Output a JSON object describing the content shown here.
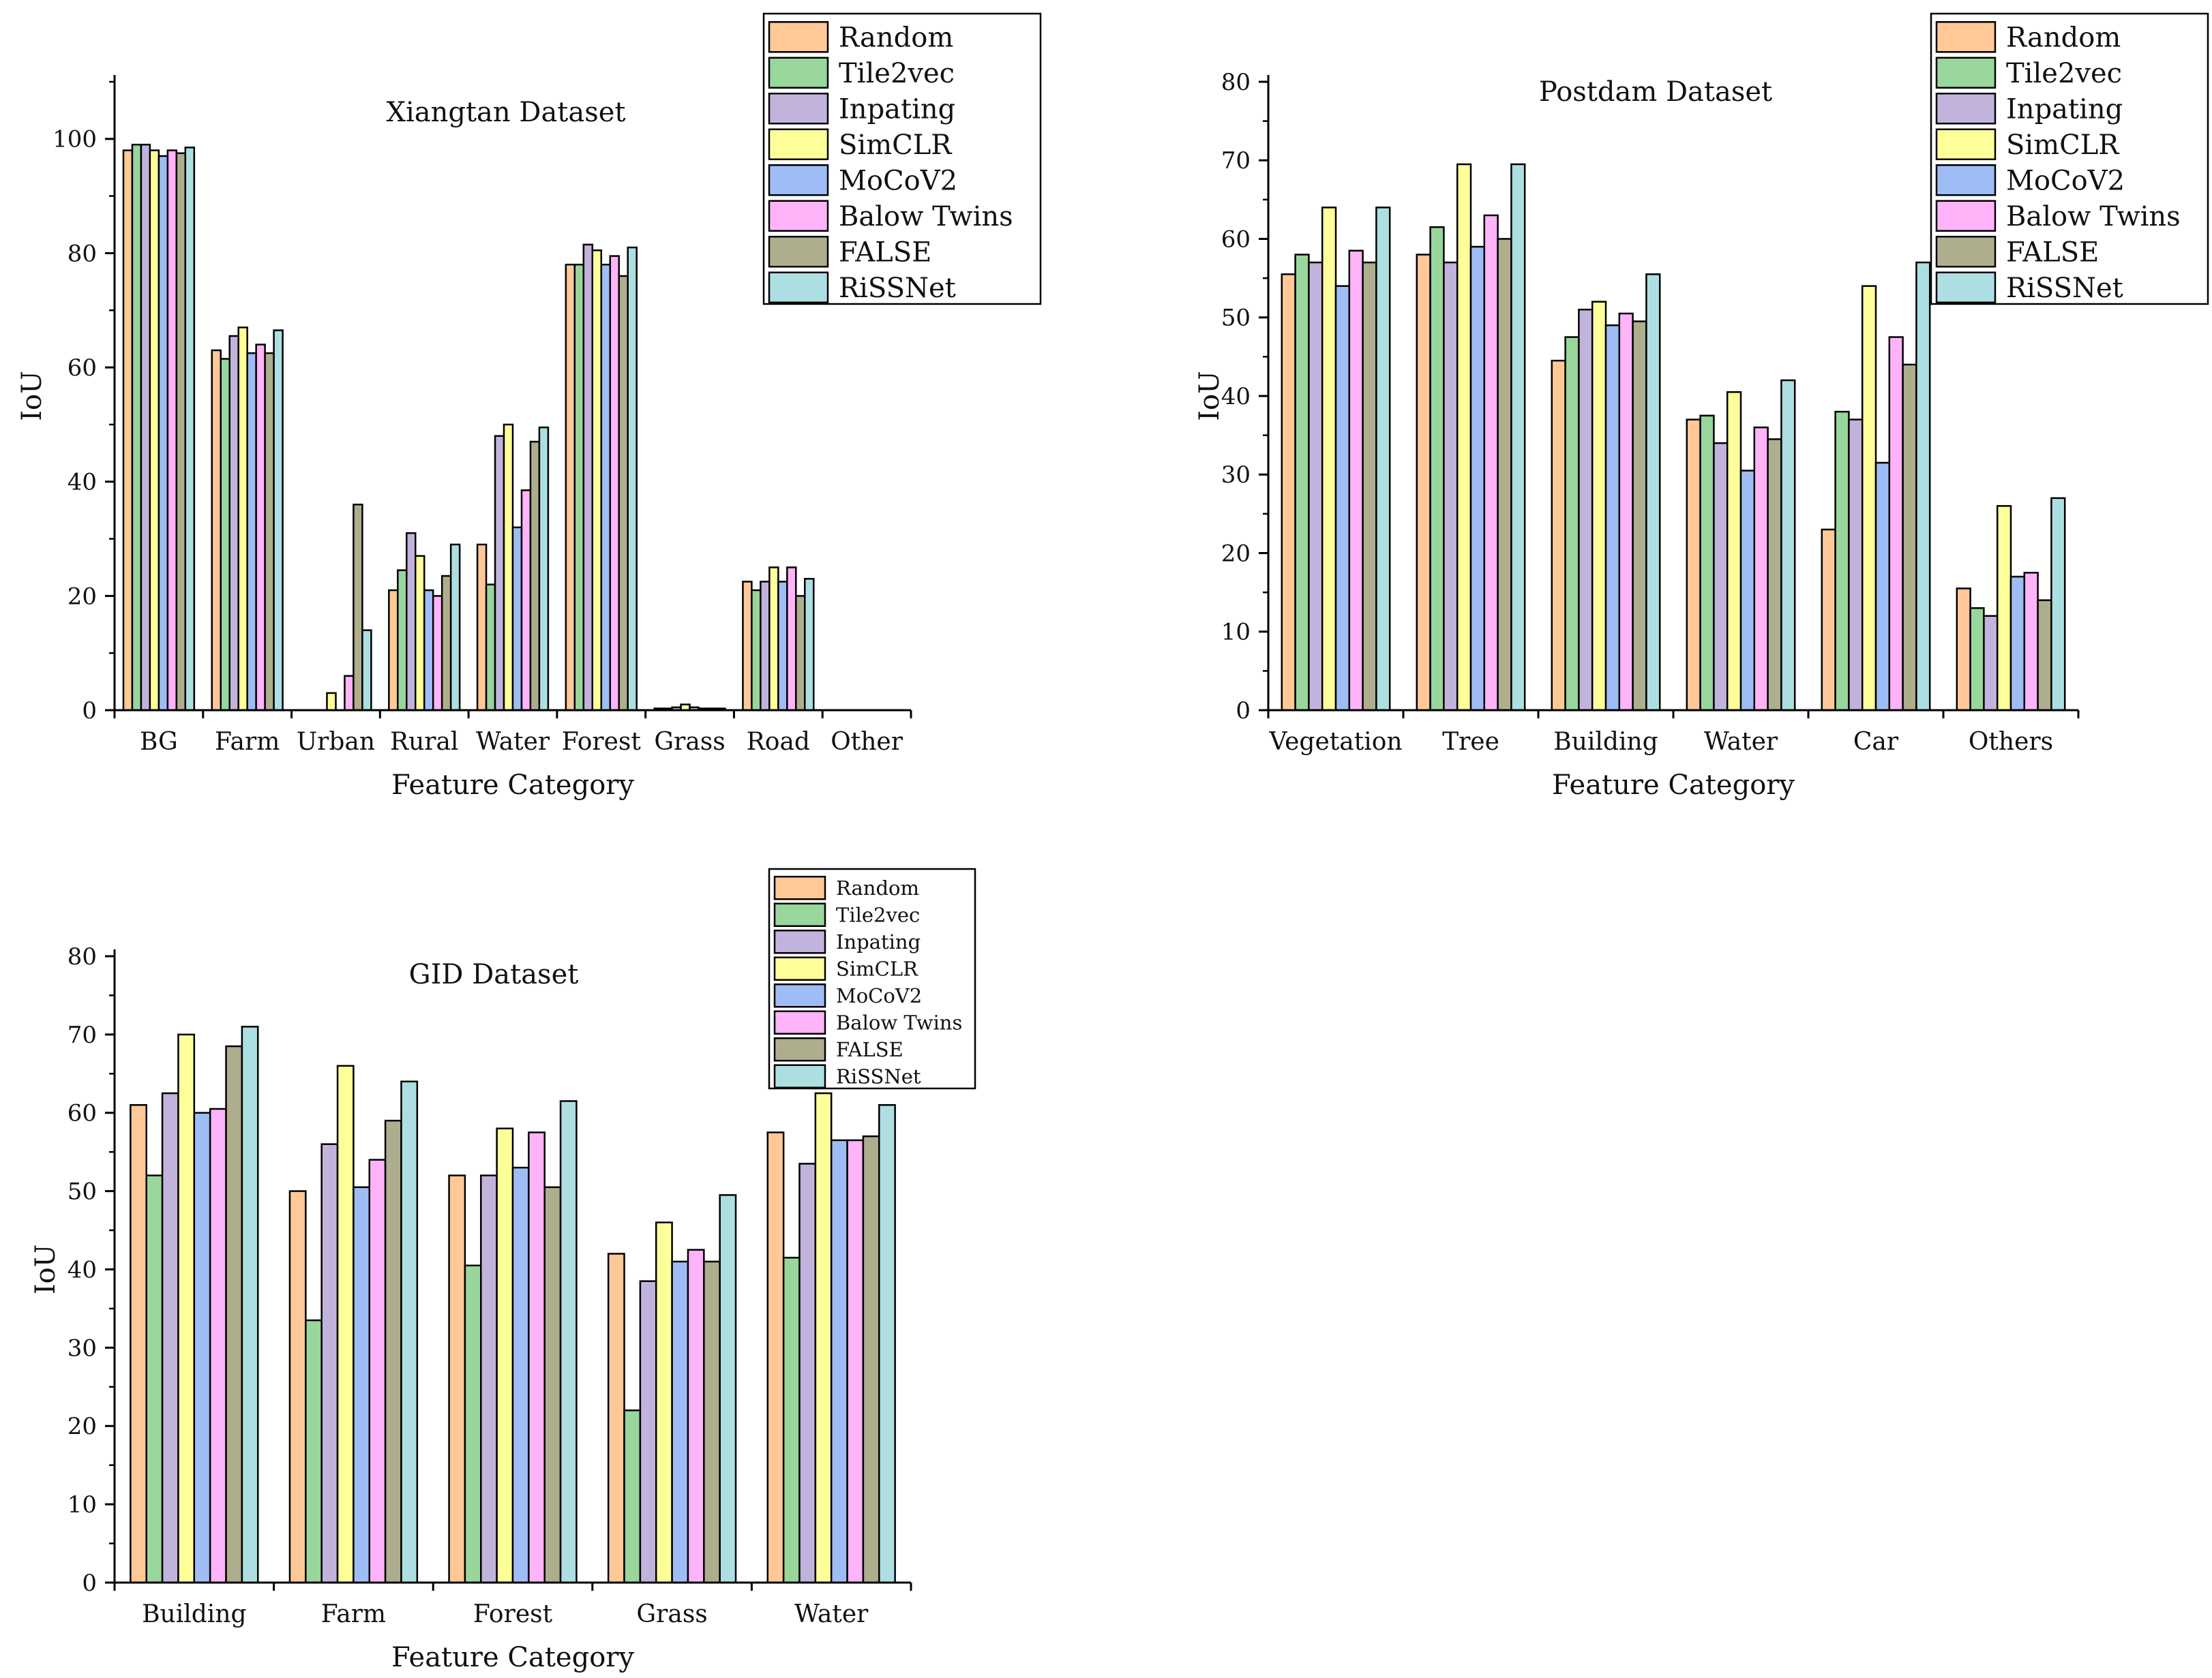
{
  "series_colors": [
    "#FFC896",
    "#98D69C",
    "#C2B3DC",
    "#FFFF9A",
    "#9FBDF5",
    "#FFB3F8",
    "#AEAE8E",
    "#ADDFE2"
  ],
  "chart_data": [
    {
      "type": "bar",
      "title": "Xiangtan Dataset",
      "xlabel": "Feature Category",
      "ylabel": "IoU",
      "ylim": [
        0,
        110
      ],
      "yticks": [
        0,
        20,
        40,
        60,
        80,
        100
      ],
      "categories": [
        "BG",
        "Farm",
        "Urban",
        "Rural",
        "Water",
        "Forest",
        "Grass",
        "Road",
        "Other"
      ],
      "legend_position": "top-right",
      "series": [
        {
          "name": "Random",
          "values": [
            98,
            63,
            0,
            21,
            29,
            78,
            0.3,
            22.5,
            0
          ]
        },
        {
          "name": "Tile2vec",
          "values": [
            99,
            61.5,
            0,
            24.5,
            22,
            78,
            0.3,
            21,
            0
          ]
        },
        {
          "name": "Inpating",
          "values": [
            99,
            65.5,
            0,
            31,
            48,
            81.5,
            0.5,
            22.5,
            0
          ]
        },
        {
          "name": "SimCLR",
          "values": [
            98,
            67,
            3,
            27,
            50,
            80.5,
            1,
            25,
            0
          ]
        },
        {
          "name": "MoCoV2",
          "values": [
            97,
            62.5,
            0,
            21,
            32,
            78,
            0.5,
            22.5,
            0
          ]
        },
        {
          "name": "Balow Twins",
          "values": [
            98,
            64,
            6,
            20,
            38.5,
            79.5,
            0.3,
            25,
            0
          ]
        },
        {
          "name": "FALSE",
          "values": [
            97.5,
            62.5,
            36,
            23.5,
            47,
            76,
            0.3,
            20,
            0
          ]
        },
        {
          "name": "RiSSNet",
          "values": [
            98.5,
            66.5,
            14,
            29,
            49.5,
            81,
            0.3,
            23,
            0
          ]
        }
      ]
    },
    {
      "type": "bar",
      "title": "Postdam Dataset",
      "xlabel": "Feature Category",
      "ylabel": "IoU",
      "ylim": [
        0,
        80
      ],
      "yticks": [
        0,
        10,
        20,
        30,
        40,
        50,
        60,
        70,
        80
      ],
      "categories": [
        "Vegetation",
        "Tree",
        "Building",
        "Water",
        "Car",
        "Others"
      ],
      "legend_position": "top-right",
      "series": [
        {
          "name": "Random",
          "values": [
            55.5,
            58,
            44.5,
            37,
            23,
            15.5
          ]
        },
        {
          "name": "Tile2vec",
          "values": [
            58,
            61.5,
            47.5,
            37.5,
            38,
            13
          ]
        },
        {
          "name": "Inpating",
          "values": [
            57,
            57,
            51,
            34,
            37,
            12
          ]
        },
        {
          "name": "SimCLR",
          "values": [
            64,
            69.5,
            52,
            40.5,
            54,
            26
          ]
        },
        {
          "name": "MoCoV2",
          "values": [
            54,
            59,
            49,
            30.5,
            31.5,
            17
          ]
        },
        {
          "name": "Balow Twins",
          "values": [
            58.5,
            63,
            50.5,
            36,
            47.5,
            17.5
          ]
        },
        {
          "name": "FALSE",
          "values": [
            57,
            60,
            49.5,
            34.5,
            44,
            14
          ]
        },
        {
          "name": "RiSSNet",
          "values": [
            64,
            69.5,
            55.5,
            42,
            57,
            27
          ]
        }
      ]
    },
    {
      "type": "bar",
      "title": "GID Dataset",
      "xlabel": "Feature Category",
      "ylabel": "IoU",
      "ylim": [
        0,
        80
      ],
      "yticks": [
        0,
        10,
        20,
        30,
        40,
        50,
        60,
        70,
        80
      ],
      "categories": [
        "Building",
        "Farm",
        "Forest",
        "Grass",
        "Water"
      ],
      "legend_position": "top-right",
      "series": [
        {
          "name": "Random",
          "values": [
            61,
            50,
            52,
            42,
            57.5
          ]
        },
        {
          "name": "Tile2vec",
          "values": [
            52,
            33.5,
            40.5,
            22,
            41.5
          ]
        },
        {
          "name": "Inpating",
          "values": [
            62.5,
            56,
            52,
            38.5,
            53.5
          ]
        },
        {
          "name": "SimCLR",
          "values": [
            70,
            66,
            58,
            46,
            62.5
          ]
        },
        {
          "name": "MoCoV2",
          "values": [
            60,
            50.5,
            53,
            41,
            56.5
          ]
        },
        {
          "name": "Balow Twins",
          "values": [
            60.5,
            54,
            57.5,
            42.5,
            56.5
          ]
        },
        {
          "name": "FALSE",
          "values": [
            68.5,
            59,
            50.5,
            41,
            57
          ]
        },
        {
          "name": "RiSSNet",
          "values": [
            71,
            64,
            61.5,
            49.5,
            61
          ]
        }
      ]
    }
  ]
}
